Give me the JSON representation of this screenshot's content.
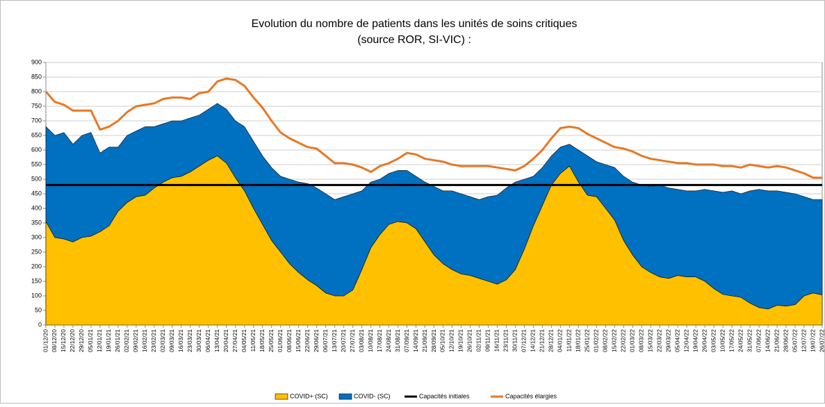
{
  "chart_data": {
    "type": "area",
    "stacked": true,
    "title": "Evolution du nombre de patients dans les unités de soins critiques",
    "subtitle": "(source ROR, SI-VIC) :",
    "categories": [
      "01/12/20",
      "08/12/20",
      "15/12/20",
      "22/12/20",
      "29/12/20",
      "05/01/21",
      "12/01/21",
      "19/01/21",
      "26/01/21",
      "02/02/21",
      "09/02/21",
      "16/02/21",
      "23/02/21",
      "02/03/21",
      "09/03/21",
      "16/03/21",
      "23/03/21",
      "30/03/21",
      "06/04/21",
      "13/04/21",
      "20/04/21",
      "27/04/21",
      "04/05/21",
      "11/05/21",
      "18/05/21",
      "25/05/21",
      "01/06/21",
      "08/06/21",
      "15/06/21",
      "22/06/21",
      "29/06/21",
      "06/07/21",
      "13/07/21",
      "20/07/21",
      "27/07/21",
      "03/08/21",
      "10/08/21",
      "17/08/21",
      "24/08/21",
      "31/08/21",
      "07/09/21",
      "14/09/21",
      "21/09/21",
      "28/09/21",
      "05/10/21",
      "12/10/21",
      "19/10/21",
      "26/10/21",
      "02/11/21",
      "09/11/21",
      "16/11/21",
      "23/11/21",
      "30/11/21",
      "07/12/21",
      "14/12/21",
      "21/12/21",
      "28/12/21",
      "04/01/22",
      "11/01/22",
      "18/01/22",
      "25/01/22",
      "01/02/22",
      "08/02/22",
      "15/02/22",
      "22/02/22",
      "01/03/22",
      "08/03/22",
      "15/03/22",
      "22/03/22",
      "29/03/22",
      "05/04/22",
      "12/04/22",
      "19/04/22",
      "26/04/22",
      "03/05/22",
      "10/05/22",
      "17/05/22",
      "24/05/22",
      "31/05/22",
      "07/06/22",
      "14/06/22",
      "21/06/22",
      "28/06/22",
      "05/07/22",
      "12/07/22",
      "19/07/22",
      "26/07/22"
    ],
    "series": [
      {
        "name": "COVID+ (SC)",
        "kind": "area",
        "color": "#ffc000",
        "values": [
          355,
          300,
          295,
          285,
          300,
          305,
          320,
          340,
          390,
          420,
          440,
          445,
          470,
          490,
          505,
          510,
          525,
          545,
          565,
          580,
          555,
          505,
          460,
          400,
          345,
          290,
          250,
          210,
          180,
          155,
          135,
          110,
          100,
          100,
          120,
          190,
          265,
          310,
          345,
          355,
          350,
          330,
          285,
          240,
          210,
          190,
          175,
          170,
          160,
          150,
          140,
          155,
          190,
          260,
          340,
          410,
          480,
          520,
          545,
          490,
          445,
          440,
          400,
          360,
          290,
          240,
          200,
          180,
          165,
          160,
          170,
          165,
          165,
          150,
          125,
          105,
          100,
          95,
          75,
          60,
          55,
          68,
          65,
          70,
          100,
          110,
          103
        ]
      },
      {
        "name": "COVID- (SC)",
        "kind": "area",
        "color": "#0070c0",
        "values": [
          325,
          350,
          365,
          335,
          350,
          355,
          270,
          270,
          220,
          230,
          225,
          235,
          210,
          200,
          195,
          190,
          185,
          175,
          175,
          180,
          185,
          195,
          220,
          230,
          235,
          250,
          260,
          290,
          310,
          330,
          335,
          340,
          330,
          340,
          330,
          270,
          225,
          190,
          175,
          175,
          180,
          180,
          205,
          235,
          250,
          270,
          275,
          270,
          270,
          290,
          305,
          315,
          300,
          240,
          170,
          130,
          100,
          90,
          75,
          110,
          135,
          120,
          150,
          180,
          220,
          250,
          280,
          295,
          315,
          310,
          295,
          295,
          295,
          315,
          335,
          350,
          360,
          355,
          385,
          405,
          405,
          392,
          390,
          380,
          340,
          320,
          327
        ]
      },
      {
        "name": "Capacités initiales",
        "kind": "line",
        "color": "#000000",
        "values": [
          480,
          480,
          480,
          480,
          480,
          480,
          480,
          480,
          480,
          480,
          480,
          480,
          480,
          480,
          480,
          480,
          480,
          480,
          480,
          480,
          480,
          480,
          480,
          480,
          480,
          480,
          480,
          480,
          480,
          480,
          480,
          480,
          480,
          480,
          480,
          480,
          480,
          480,
          480,
          480,
          480,
          480,
          480,
          480,
          480,
          480,
          480,
          480,
          480,
          480,
          480,
          480,
          480,
          480,
          480,
          480,
          480,
          480,
          480,
          480,
          480,
          480,
          480,
          480,
          480,
          480,
          480,
          480,
          480,
          480,
          480,
          480,
          480,
          480,
          480,
          480,
          480,
          480,
          480,
          480,
          480,
          480,
          480,
          480,
          480,
          480,
          480
        ]
      },
      {
        "name": "Capacités élargies",
        "kind": "line",
        "color": "#e87722",
        "values": [
          800,
          765,
          755,
          735,
          735,
          735,
          670,
          680,
          700,
          730,
          750,
          755,
          760,
          775,
          780,
          780,
          775,
          795,
          800,
          835,
          845,
          840,
          820,
          780,
          745,
          700,
          660,
          640,
          625,
          610,
          605,
          580,
          555,
          555,
          550,
          540,
          525,
          545,
          555,
          570,
          590,
          585,
          570,
          565,
          560,
          550,
          545,
          545,
          545,
          545,
          540,
          535,
          530,
          545,
          570,
          600,
          640,
          675,
          680,
          675,
          655,
          640,
          625,
          610,
          605,
          595,
          580,
          570,
          565,
          560,
          555,
          555,
          550,
          550,
          550,
          545,
          545,
          540,
          550,
          545,
          540,
          545,
          540,
          530,
          520,
          505,
          505
        ]
      }
    ],
    "ylim": [
      0,
      900
    ],
    "yticks": [
      0,
      50,
      100,
      150,
      200,
      250,
      300,
      350,
      400,
      450,
      500,
      550,
      600,
      650,
      700,
      750,
      800,
      850,
      900
    ],
    "grid": true,
    "legend": "bottom"
  }
}
